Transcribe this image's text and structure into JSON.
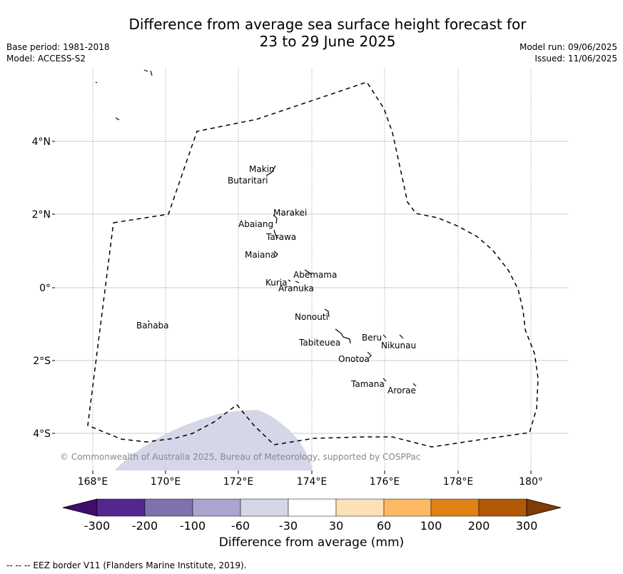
{
  "title": {
    "line1": "Difference from average sea surface height forecast for",
    "line2": "23 to 29 June 2025"
  },
  "meta_left": {
    "base_period": "Base period: 1981-2018",
    "model": "Model: ACCESS-S2"
  },
  "meta_right": {
    "model_run": "Model run: 09/06/2025",
    "issued": "Issued: 11/06/2025"
  },
  "map": {
    "lat_ticks": [
      "4°N",
      "2°N",
      "0°",
      "2°S",
      "4°S"
    ],
    "lon_ticks": [
      "168°E",
      "170°E",
      "172°E",
      "174°E",
      "176°E",
      "178°E",
      "180°"
    ],
    "places": [
      "Makin",
      "Butaritari",
      "Marakei",
      "Abaiang",
      "Tarawa",
      "Maiana",
      "Abemama",
      "Kuria",
      "Aranuka",
      "Banaba",
      "Nonouti",
      "Beru",
      "Nikunau",
      "Tabiteuea",
      "Onotoa",
      "Tamana",
      "Arorae"
    ],
    "copyright": "© Commonwealth of Australia 2025, Bureau of Meteorology, supported by COSPPac",
    "anomaly_region_category": "-60 to -30",
    "colors": {
      "anomaly_fill": "#d6d6e9",
      "grid": "#cccccc",
      "eez_line": "#000000"
    }
  },
  "colorbar": {
    "ticks": [
      "-300",
      "-200",
      "-100",
      "-60",
      "-30",
      "30",
      "60",
      "100",
      "200",
      "300"
    ],
    "colors": [
      "#3f0e6b",
      "#54278f",
      "#7f72ac",
      "#aaa4cf",
      "#d6d6e9",
      "#ffffff",
      "#fee0b6",
      "#fdb863",
      "#e08214",
      "#b35806",
      "#7f3b08"
    ],
    "title": "Difference from average (mm)"
  },
  "footer": "--  --  -- EEZ border V11 (Flanders Marine Institute, 2019)."
}
